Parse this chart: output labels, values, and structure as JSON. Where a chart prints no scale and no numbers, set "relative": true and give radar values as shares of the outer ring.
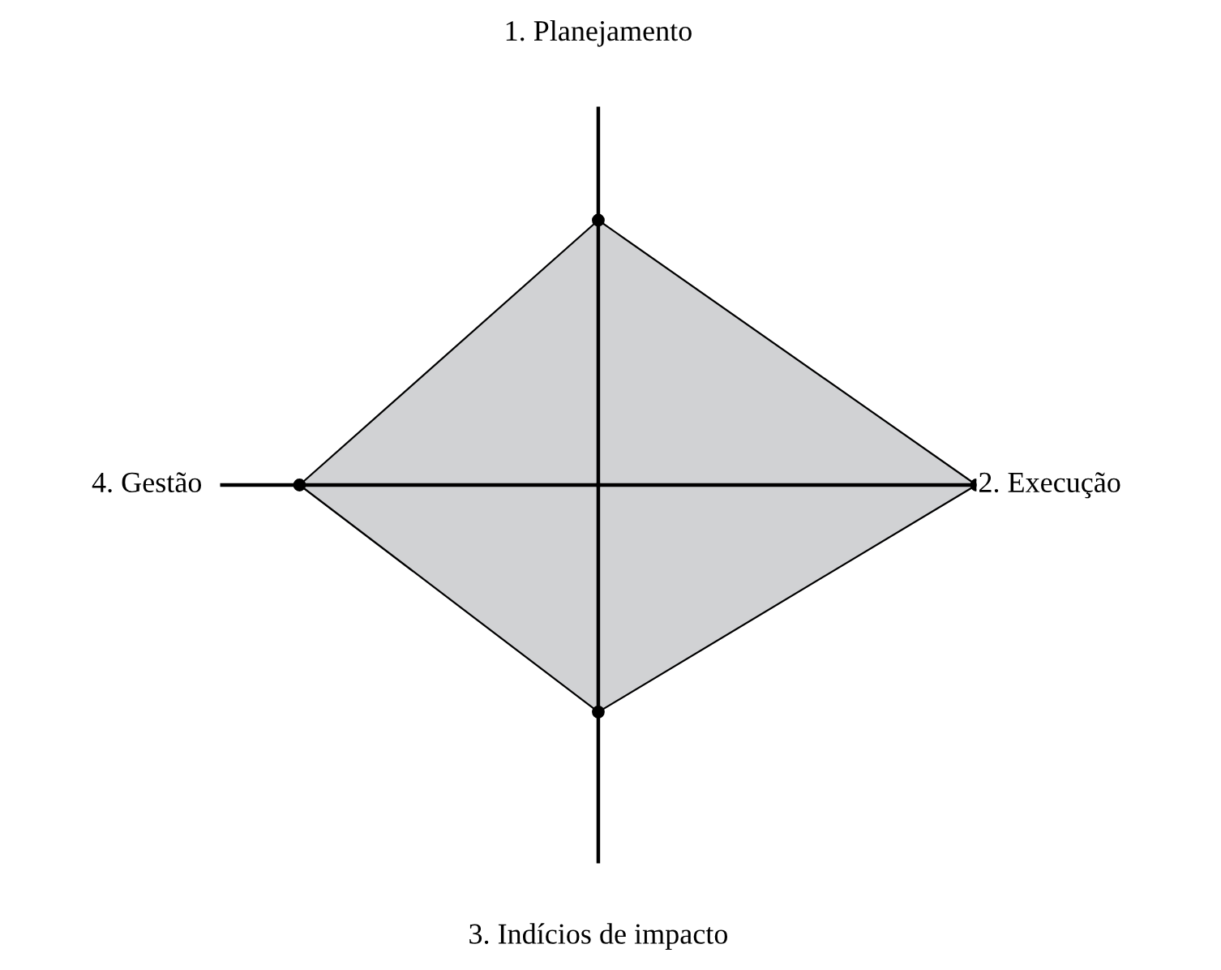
{
  "chart_data": {
    "type": "radar",
    "relative": true,
    "categories": [
      "1. Planejamento",
      "2. Execução",
      "3. Indícios de impacto",
      "4. Gestão"
    ],
    "series": [
      {
        "color": "#d1d2d4",
        "values": [
          0.7,
          1.0,
          0.6,
          0.79
        ]
      }
    ],
    "marker": "circle",
    "line_style": "solid",
    "legend": false
  }
}
